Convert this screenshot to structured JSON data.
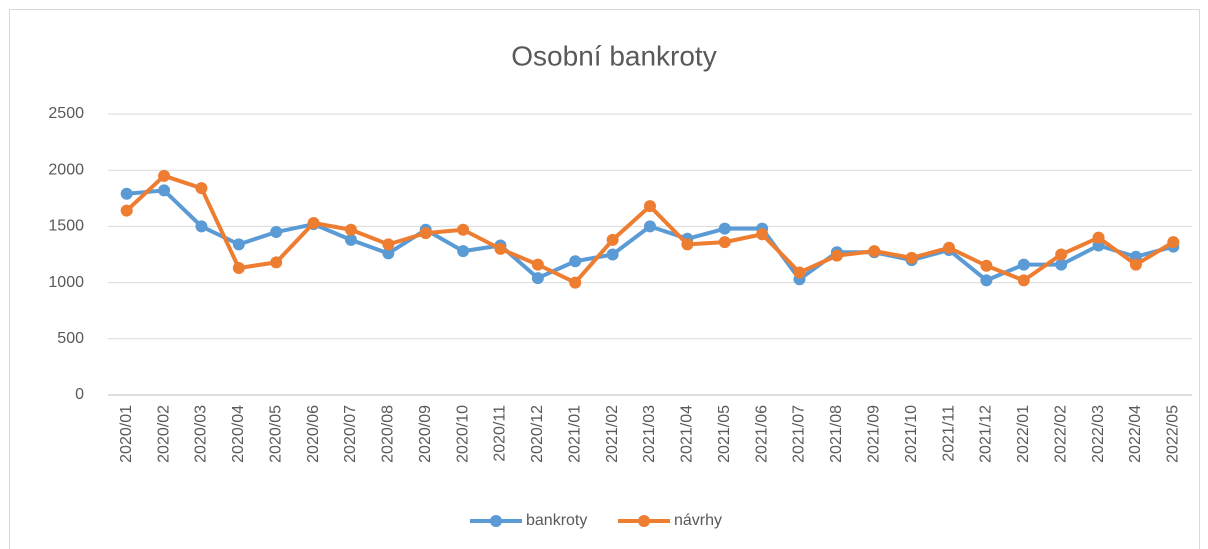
{
  "chart_data": {
    "type": "line",
    "title": "Osobní bankroty",
    "categories": [
      "2020/01",
      "2020/02",
      "2020/03",
      "2020/04",
      "2020/05",
      "2020/06",
      "2020/07",
      "2020/08",
      "2020/09",
      "2020/10",
      "2020/11",
      "2020/12",
      "2021/01",
      "2021/02",
      "2021/03",
      "2021/04",
      "2021/05",
      "2021/06",
      "2021/07",
      "2021/08",
      "2021/09",
      "2021/10",
      "2021/11",
      "2021/12",
      "2022/01",
      "2022/02",
      "2022/03",
      "2022/04",
      "2022/05"
    ],
    "series": [
      {
        "name": "bankroty",
        "color": "#5b9bd5",
        "values": [
          1790,
          1820,
          1500,
          1340,
          1450,
          1520,
          1380,
          1260,
          1470,
          1280,
          1330,
          1040,
          1190,
          1250,
          1500,
          1390,
          1480,
          1480,
          1030,
          1270,
          1270,
          1200,
          1290,
          1020,
          1160,
          1160,
          1330,
          1230,
          1320
        ]
      },
      {
        "name": "návrhy",
        "color": "#ed7d31",
        "values": [
          1640,
          1950,
          1840,
          1130,
          1180,
          1530,
          1470,
          1340,
          1440,
          1470,
          1300,
          1160,
          1000,
          1380,
          1680,
          1340,
          1360,
          1430,
          1090,
          1240,
          1280,
          1220,
          1310,
          1150,
          1020,
          1250,
          1400,
          1160,
          1360
        ]
      }
    ],
    "ylim": [
      0,
      2500
    ],
    "yticks": [
      0,
      500,
      1000,
      1500,
      2000,
      2500
    ],
    "grid": true,
    "legend": "bottom"
  }
}
